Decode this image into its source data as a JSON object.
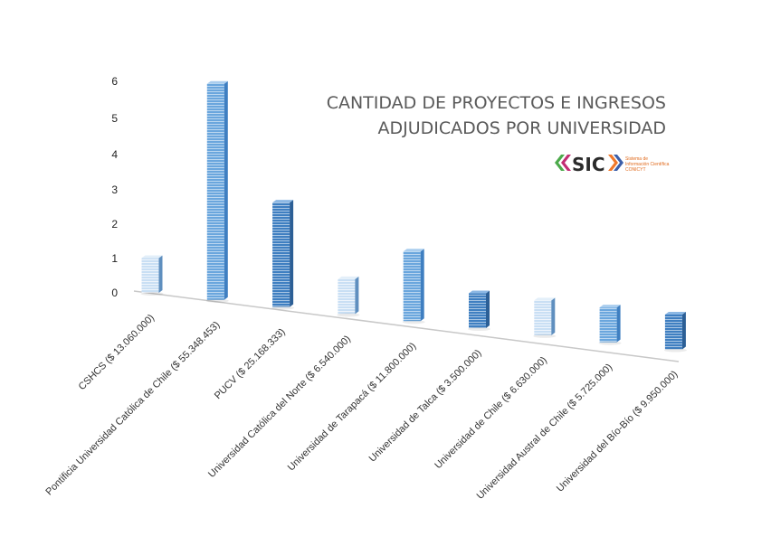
{
  "chart_data": {
    "type": "bar",
    "title_lines": [
      "CANTIDAD DE PROYECTOS E INGRESOS",
      "ADJUDICADOS POR UNIVERSIDAD"
    ],
    "yticks": [
      0,
      1,
      2,
      3,
      4,
      5,
      6
    ],
    "ylim": [
      0,
      6
    ],
    "categories": [
      "CSHCS ($ 13.060.000)",
      "Pontificia Universidad Católica de Chile ($ 55.348.453)",
      "PUCV ($ 25.168.333)",
      "Universidad Católica del Norte ($ 6.540.000)",
      "Universidad de Tarapacá ($ 11.800.000)",
      "Universidad de Talca ($ 3.500.000)",
      "Universidad de Chile ($ 6.630.000)",
      "Universidad Austral de Chile ($ 5.725.000)",
      "Universidad del Bío-Bío ($ 9.950.000)"
    ],
    "series": [
      {
        "values": [
          1,
          6,
          3,
          1,
          2,
          1,
          1,
          1,
          1
        ]
      }
    ],
    "colors": {
      "dark": "#3f7fc1",
      "mid": "#6aa6dd",
      "light": "#c9dff4"
    },
    "bar_shades": [
      "light",
      "mid",
      "dark",
      "light",
      "mid",
      "dark",
      "light",
      "mid",
      "dark"
    ]
  },
  "logo": {
    "text": "SIC",
    "subtitle_lines": [
      "Sistema de",
      "Información Científica",
      "CONICYT"
    ],
    "colors": {
      "green": "#4caa4b",
      "magenta": "#c22d73",
      "orange": "#f0782a",
      "blue": "#3c5ea8"
    }
  }
}
